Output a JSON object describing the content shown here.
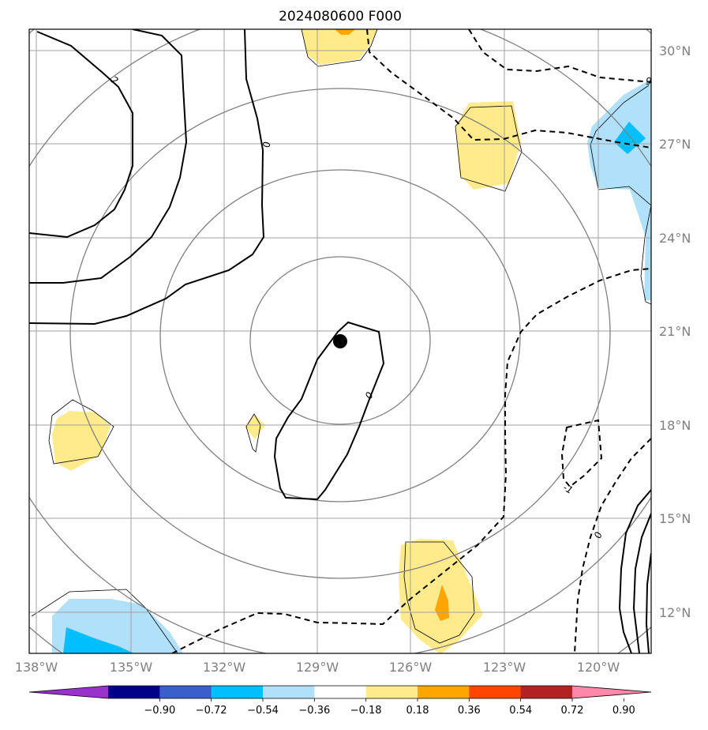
{
  "title": "2024080600 F000",
  "map": {
    "lon_labels": [
      "138°W",
      "135°W",
      "132°W",
      "129°W",
      "126°W",
      "123°W",
      "120°W"
    ],
    "lat_labels": [
      "30°N",
      "27°N",
      "24°N",
      "21°N",
      "18°N",
      "15°N",
      "12°N"
    ],
    "center_marker": "storm-center-dot",
    "range_rings": 5
  },
  "contour_labels": {
    "zero_a": "0",
    "zero_b": "0",
    "zero_c": "0",
    "two": "2",
    "neg_one": "-1",
    "nine": "9"
  },
  "colorbar": {
    "levels": [
      "−0.90",
      "−0.72",
      "−0.54",
      "−0.36",
      "−0.18",
      "0.18",
      "0.36",
      "0.54",
      "0.72",
      "0.90"
    ],
    "colors": [
      "#9932cc",
      "#00008b",
      "#3a5fcd",
      "#00bfff",
      "#b0e0fa",
      "#ffffff",
      "#ffea8c",
      "#ffa500",
      "#ff4500",
      "#b22222",
      "#ff88aa"
    ]
  },
  "colors": {
    "fill_light_yellow": "#ffea8c",
    "fill_orange": "#ffa500",
    "fill_light_blue": "#b0e0fa",
    "fill_blue": "#00bfff"
  }
}
